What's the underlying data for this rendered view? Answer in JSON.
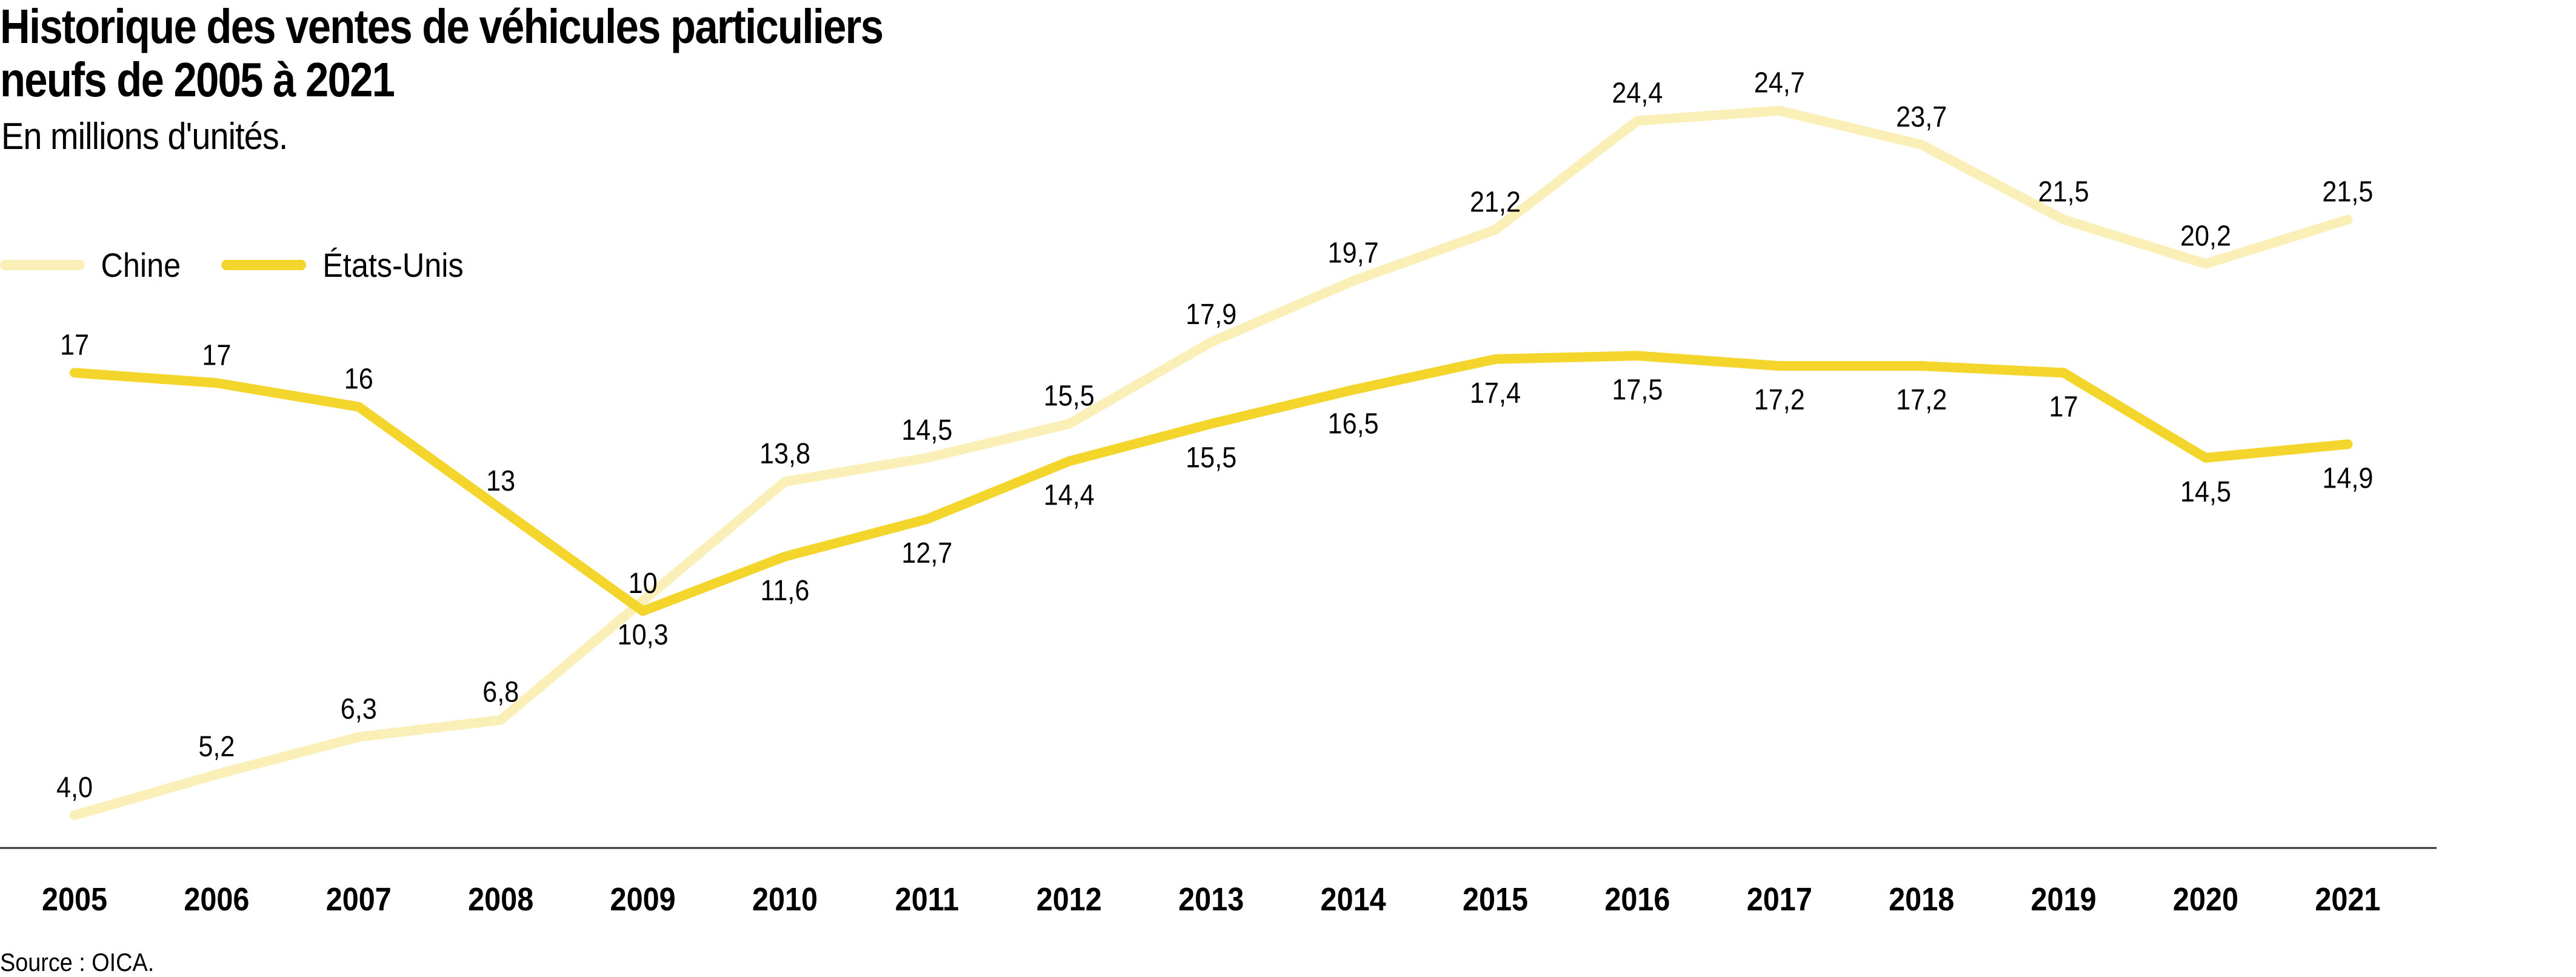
{
  "chart_data": {
    "type": "line",
    "title": "Historique des ventes de véhicules particuliers neufs de 2005 à 2021",
    "title_lines": [
      "Historique des ventes de véhicules particuliers",
      "neufs de 2005 à 2021"
    ],
    "subtitle": "En millions d'unités.",
    "source": "Source : OICA.",
    "x": [
      "2005",
      "2006",
      "2007",
      "2008",
      "2009",
      "2010",
      "2011",
      "2012",
      "2013",
      "2014",
      "2015",
      "2016",
      "2017",
      "2018",
      "2019",
      "2020",
      "2021"
    ],
    "ylim": [
      4,
      24.7
    ],
    "grid": false,
    "legend_position": "top-left",
    "series": [
      {
        "name": "Chine",
        "color": "#fbefb8",
        "values": [
          4.0,
          5.2,
          6.3,
          6.8,
          10.3,
          13.8,
          14.5,
          15.5,
          17.9,
          19.7,
          21.2,
          24.4,
          24.7,
          23.7,
          21.5,
          20.2,
          21.5
        ],
        "labels": [
          "4,0",
          "5,2",
          "6,3",
          "6,8",
          "10,3",
          "13,8",
          "14,5",
          "15,5",
          "17,9",
          "19,7",
          "21,2",
          "24,4",
          "24,7",
          "23,7",
          "21,5",
          "20,2",
          "21,5"
        ],
        "label_side": [
          "above",
          "above",
          "above",
          "above",
          "below",
          "above",
          "above",
          "above",
          "above",
          "above",
          "above",
          "above",
          "above",
          "above",
          "above",
          "above",
          "above"
        ]
      },
      {
        "name": "États-Unis",
        "color": "#f4d52b",
        "values": [
          17,
          16.7,
          16,
          13,
          10,
          11.6,
          12.7,
          14.4,
          15.5,
          16.5,
          17.4,
          17.5,
          17.2,
          17.2,
          17,
          14.5,
          14.9
        ],
        "labels": [
          "17",
          "17",
          "16",
          "13",
          "10",
          "11,6",
          "12,7",
          "14,4",
          "15,5",
          "16,5",
          "17,4",
          "17,5",
          "17,2",
          "17,2",
          "17",
          "14,5",
          "14,9"
        ],
        "label_side": [
          "above",
          "above",
          "above",
          "above",
          "above",
          "below",
          "below",
          "below",
          "below",
          "below",
          "below",
          "below",
          "below",
          "below",
          "below",
          "below",
          "below"
        ]
      }
    ]
  }
}
